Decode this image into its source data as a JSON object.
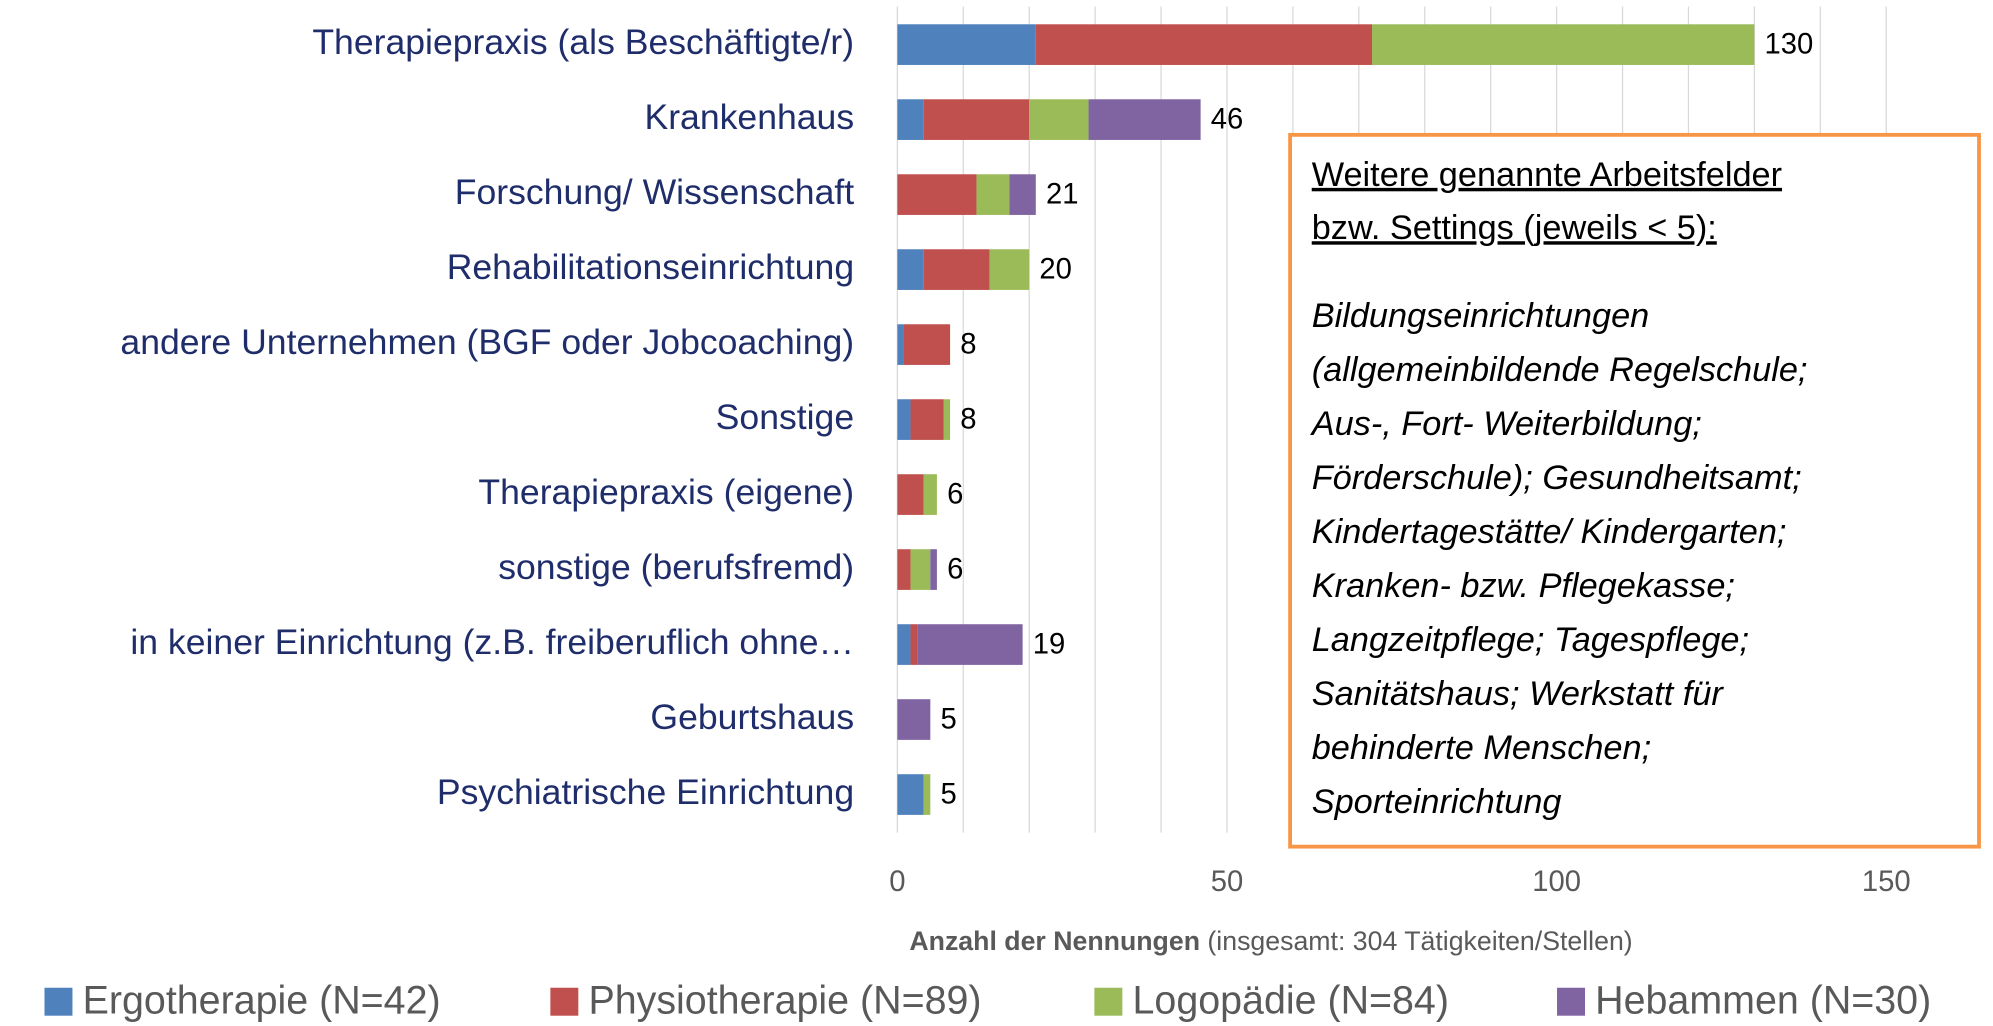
{
  "chart_data": {
    "type": "stacked_barh",
    "categories": [
      "Therapiepraxis (als Beschäftigte/r)",
      "Krankenhaus",
      "Forschung/ Wissenschaft",
      "Rehabilitationseinrichtung",
      "andere Unternehmen (BGF oder Jobcoaching)",
      "Sonstige",
      "Therapiepraxis (eigene)",
      "sonstige (berufsfremd)",
      "in keiner Einrichtung (z.B. freiberuflich ohne…",
      "Geburtshaus",
      "Psychiatrische Einrichtung"
    ],
    "series": [
      {
        "name": "Ergotherapie (N=42)",
        "color": "#4f81bd",
        "values": [
          21,
          4,
          0,
          4,
          1,
          2,
          0,
          0,
          2,
          0,
          4
        ]
      },
      {
        "name": "Physiotherapie (N=89)",
        "color": "#c0504d",
        "values": [
          51,
          16,
          12,
          10,
          7,
          5,
          4,
          2,
          1,
          0,
          0
        ]
      },
      {
        "name": "Logopädie (N=84)",
        "color": "#9bbb59",
        "values": [
          58,
          9,
          5,
          6,
          0,
          1,
          2,
          3,
          0,
          0,
          1
        ]
      },
      {
        "name": "Hebammen (N=30)",
        "color": "#8064a2",
        "values": [
          0,
          17,
          4,
          0,
          0,
          0,
          0,
          1,
          16,
          5,
          0
        ]
      }
    ],
    "totals": [
      130,
      46,
      21,
      20,
      8,
      8,
      6,
      6,
      19,
      5,
      5
    ],
    "xlim": [
      0,
      150
    ],
    "xticks": [
      0,
      50,
      100,
      150
    ],
    "xgridlines": [
      0,
      10,
      20,
      30,
      40,
      50,
      60,
      70,
      80,
      90,
      100,
      110,
      120,
      130,
      140,
      150
    ],
    "xlabel": "Anzahl der Nennungen",
    "xlabel_note": "(insgesamt: 304 Tätigkeiten/Stellen)",
    "legend": "bottom",
    "annotation": {
      "heading": [
        "Weitere genannte Arbeitsfelder",
        "bzw. Settings (jeweils < 5):"
      ],
      "lines": [
        "Bildungseinrichtungen",
        "(allgemeinbildende Regelschule;",
        "Aus-, Fort- Weiterbildung;",
        "Förderschule); Gesundheitsamt;",
        "Kindertagestätte/ Kindergarten;",
        "Kranken- bzw. Pflegekasse;",
        "Langzeitpflege; Tagespflege;",
        "Sanitätshaus; Werkstatt für",
        "behinderte Menschen;",
        "Sporteinrichtung"
      ]
    }
  }
}
